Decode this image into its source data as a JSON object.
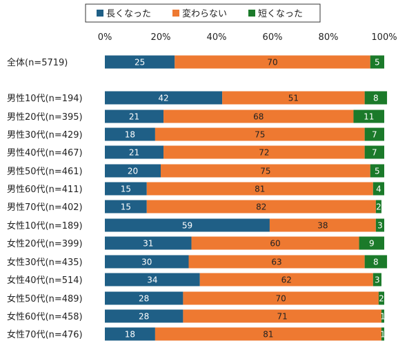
{
  "colors": {
    "longer": "#1f5f86",
    "unchanged": "#ee7931",
    "shorter": "#1b7a2a",
    "label_on_dark": "#ffffff",
    "label_on_orange": "#222222"
  },
  "chart_data": {
    "type": "bar",
    "orientation": "horizontal",
    "stacked": true,
    "legend_position": "top",
    "grid": false,
    "xlim": [
      0,
      100
    ],
    "xticks": [
      "0%",
      "20%",
      "40%",
      "60%",
      "80%",
      "100%"
    ],
    "categories": [
      "全体(n=5719)",
      "男性10代(n=194)",
      "男性20代(n=395)",
      "男性30代(n=429)",
      "男性40代(n=467)",
      "男性50代(n=461)",
      "男性60代(n=411)",
      "男性70代(n=402)",
      "女性10代(n=189)",
      "女性20代(n=399)",
      "女性30代(n=435)",
      "女性40代(n=514)",
      "女性50代(n=489)",
      "女性60代(n=458)",
      "女性70代(n=476)"
    ],
    "series": [
      {
        "name": "長くなった",
        "color_key": "longer",
        "values": [
          25,
          42,
          21,
          18,
          21,
          20,
          15,
          15,
          59,
          31,
          30,
          34,
          28,
          28,
          18
        ]
      },
      {
        "name": "変わらない",
        "color_key": "unchanged",
        "values": [
          70,
          51,
          68,
          75,
          72,
          75,
          81,
          82,
          38,
          60,
          63,
          62,
          70,
          71,
          81
        ]
      },
      {
        "name": "短くなった",
        "color_key": "shorter",
        "values": [
          5,
          8,
          11,
          7,
          7,
          5,
          4,
          2,
          3,
          9,
          8,
          3,
          2,
          1,
          1
        ]
      }
    ]
  }
}
